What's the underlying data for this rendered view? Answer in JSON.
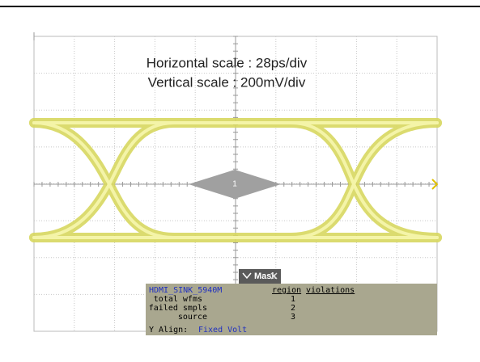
{
  "screen": {
    "annotations": [
      "Horizontal scale : 28ps/div",
      "Vertical scale : 200mV/div"
    ],
    "center_marker": "1",
    "mask_panel": {
      "tab": "Mask",
      "mask_name": "HDMI_SINK_5940M",
      "columns": [
        "region",
        "violations"
      ],
      "rows": [
        {
          "label": "total wfms",
          "value": "1"
        },
        {
          "label": "failed smpls",
          "value": "2"
        },
        {
          "label": "source",
          "value": "3"
        }
      ],
      "align_label": "Y Align:",
      "align_value": "Fixed Volt"
    }
  }
}
